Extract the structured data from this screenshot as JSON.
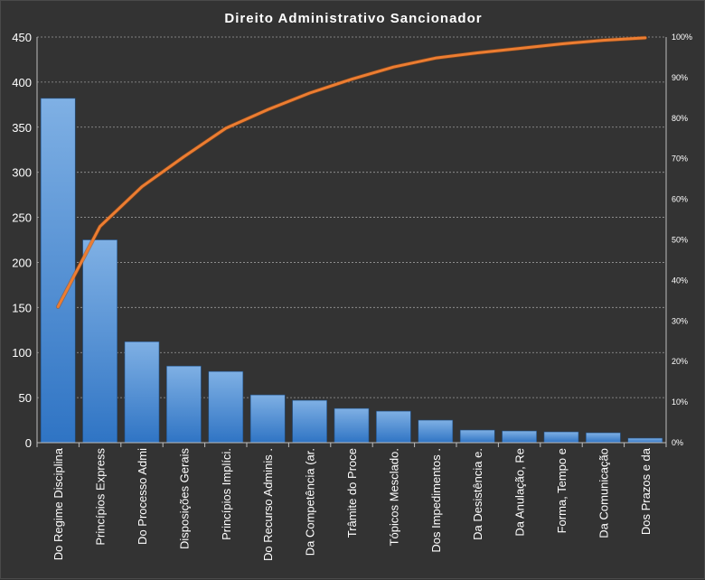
{
  "chart_data": {
    "type": "bar",
    "title": "Direito Administrativo Sancionador",
    "categories": [
      "Do Regime Disciplina",
      "Princípios Express",
      "Do Processo Admi",
      "Disposições Gerais",
      "Princípios Implíci.",
      "Do Recurso Adminis .",
      "Da Competência (ar.",
      "Trâmite do Proce",
      "Tópicos Mesclado.",
      "Dos Impedimentos .",
      "Da Desistência e.",
      "Da Anulação, Re",
      "Forma, Tempo e",
      "Da Comunicação",
      "Dos Prazos e da"
    ],
    "values": [
      382,
      225,
      112,
      85,
      79,
      53,
      47,
      38,
      35,
      25,
      14,
      13,
      12,
      11,
      5
    ],
    "cumulative_percent": [
      33.5,
      53.3,
      63.1,
      70.5,
      77.5,
      82.1,
      86.2,
      89.6,
      92.6,
      94.8,
      96.1,
      97.2,
      98.3,
      99.2,
      99.8
    ],
    "ylim": [
      0,
      450
    ],
    "y_ticks": [
      0,
      50,
      100,
      150,
      200,
      250,
      300,
      350,
      400,
      450
    ],
    "y2lim": [
      0,
      100
    ],
    "y2_ticks": [
      "0%",
      "10%",
      "20%",
      "30%",
      "40%",
      "50%",
      "60%",
      "70%",
      "80%",
      "90%",
      "100%"
    ],
    "grid": true,
    "legend": "none",
    "colors": {
      "background": "#333333",
      "bar_top": "#7fb0e4",
      "bar_bottom": "#2f74c4",
      "line": "#ed7d31",
      "grid": "#9a9a9a",
      "text": "#ffffff"
    }
  }
}
